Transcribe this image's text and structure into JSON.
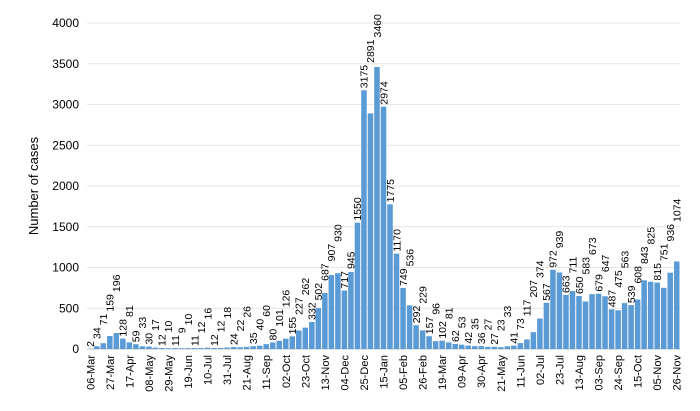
{
  "chart_data": {
    "type": "bar",
    "title": "",
    "xlabel": "",
    "ylabel": "Number of cases",
    "ylim": [
      0,
      4000
    ],
    "yticks": [
      0,
      500,
      1000,
      1500,
      2000,
      2500,
      3000,
      3500,
      4000
    ],
    "grid": true,
    "bar_color": "#5b9bd5",
    "tick_labels": [
      "06-Mar",
      "27-Mar",
      "17-Apr",
      "08-May",
      "29-May",
      "19-Jun",
      "10-Jul",
      "31-Jul",
      "21-Aug",
      "11-Sep",
      "02-Oct",
      "23-Oct",
      "13-Nov",
      "04-Dec",
      "25-Dec",
      "15-Jan",
      "05-Feb",
      "26-Feb",
      "19-Mar",
      "09-Apr",
      "30-Apr",
      "21-May",
      "11-Jun",
      "02-Jul",
      "23-Jul",
      "13-Aug",
      "03-Sep",
      "24-Sep",
      "15-Oct",
      "05-Nov",
      "26-Nov"
    ],
    "tick_every_n_bars": 3,
    "values": [
      2,
      34,
      71,
      159,
      196,
      128,
      81,
      59,
      33,
      30,
      17,
      12,
      10,
      11,
      9,
      10,
      11,
      12,
      16,
      12,
      12,
      18,
      24,
      22,
      26,
      35,
      40,
      60,
      80,
      101,
      126,
      155,
      227,
      262,
      332,
      502,
      687,
      907,
      930,
      717,
      945,
      1550,
      3175,
      2891,
      3460,
      2974,
      1775,
      1170,
      749,
      536,
      292,
      229,
      157,
      96,
      102,
      81,
      62,
      53,
      42,
      35,
      36,
      27,
      27,
      23,
      33,
      41,
      73,
      117,
      207,
      374,
      567,
      972,
      939,
      663,
      711,
      650,
      583,
      673,
      679,
      647,
      487,
      475,
      563,
      539,
      608,
      843,
      825,
      815,
      751,
      936,
      1074
    ]
  }
}
